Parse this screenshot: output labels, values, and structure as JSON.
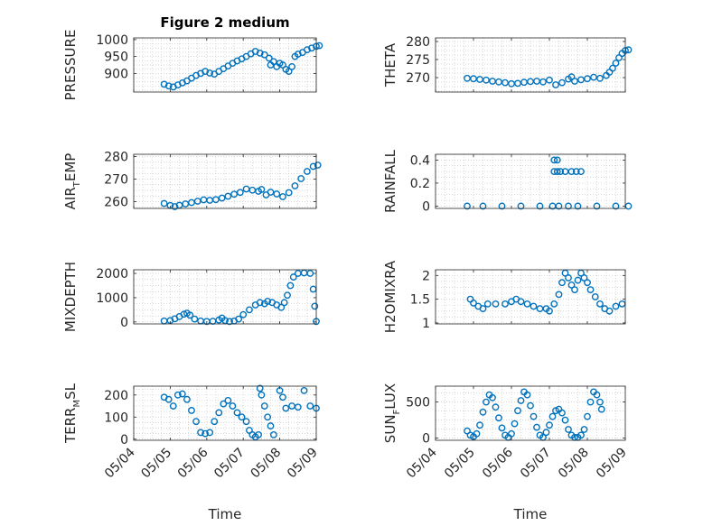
{
  "figure_title": "Figure 2 medium",
  "colors": {
    "marker": "#0072BD",
    "axes": "#262626",
    "grid": "#c8c8c8"
  },
  "chart_data": [
    {
      "id": "pressure",
      "type": "scatter",
      "title": "Figure 2 medium",
      "ylabel": {
        "main": "PRESSURE",
        "sub": ""
      },
      "xlabel": "",
      "xlim": [
        "05/04",
        "05/09"
      ],
      "xtick_labels_shown": false,
      "ylim": [
        845,
        1005
      ],
      "yticks": [
        900,
        950,
        1000
      ],
      "grid": true,
      "points": [
        [
          "05/04 20:00",
          868
        ],
        [
          "05/04 23:00",
          863
        ],
        [
          "05/05 02:00",
          860
        ],
        [
          "05/05 05:00",
          866
        ],
        [
          "05/05 08:00",
          872
        ],
        [
          "05/05 11:00",
          878
        ],
        [
          "05/05 14:00",
          886
        ],
        [
          "05/05 17:00",
          894
        ],
        [
          "05/05 20:00",
          900
        ],
        [
          "05/05 23:00",
          906
        ],
        [
          "05/06 02:00",
          901
        ],
        [
          "05/06 05:00",
          898
        ],
        [
          "05/06 08:00",
          906
        ],
        [
          "05/06 11:00",
          914
        ],
        [
          "05/06 14:00",
          922
        ],
        [
          "05/06 17:00",
          930
        ],
        [
          "05/06 20:00",
          937
        ],
        [
          "05/06 23:00",
          943
        ],
        [
          "05/07 02:00",
          950
        ],
        [
          "05/07 05:00",
          958
        ],
        [
          "05/07 08:00",
          965
        ],
        [
          "05/07 11:00",
          960
        ],
        [
          "05/07 14:00",
          955
        ],
        [
          "05/07 17:00",
          945
        ],
        [
          "05/07 18:00",
          925
        ],
        [
          "05/07 20:00",
          935
        ],
        [
          "05/07 22:00",
          920
        ],
        [
          "05/08 00:00",
          930
        ],
        [
          "05/08 02:00",
          925
        ],
        [
          "05/08 04:00",
          912
        ],
        [
          "05/08 06:00",
          906
        ],
        [
          "05/08 08:00",
          920
        ],
        [
          "05/08 10:00",
          950
        ],
        [
          "05/08 12:00",
          957
        ],
        [
          "05/08 15:00",
          962
        ],
        [
          "05/08 18:00",
          970
        ],
        [
          "05/08 21:00",
          975
        ],
        [
          "05/09 00:00",
          980
        ],
        [
          "05/09 02:00",
          982
        ]
      ]
    },
    {
      "id": "theta",
      "type": "scatter",
      "ylabel": {
        "main": "THETA",
        "sub": ""
      },
      "xlabel": "",
      "xlim": [
        "05/04",
        "05/09"
      ],
      "xtick_labels_shown": false,
      "ylim": [
        266,
        281
      ],
      "yticks": [
        270,
        275,
        280
      ],
      "grid": true,
      "points": [
        [
          "05/04 20:00",
          269.8
        ],
        [
          "05/05 00:00",
          269.7
        ],
        [
          "05/05 04:00",
          269.5
        ],
        [
          "05/05 08:00",
          269.3
        ],
        [
          "05/05 12:00",
          269.0
        ],
        [
          "05/05 16:00",
          268.8
        ],
        [
          "05/05 20:00",
          268.6
        ],
        [
          "05/06 00:00",
          268.3
        ],
        [
          "05/06 04:00",
          268.4
        ],
        [
          "05/06 08:00",
          268.7
        ],
        [
          "05/06 12:00",
          268.9
        ],
        [
          "05/06 16:00",
          269.0
        ],
        [
          "05/06 20:00",
          268.8
        ],
        [
          "05/07 00:00",
          269.3
        ],
        [
          "05/07 04:00",
          268.0
        ],
        [
          "05/07 08:00",
          268.6
        ],
        [
          "05/07 12:00",
          269.6
        ],
        [
          "05/07 14:00",
          270.2
        ],
        [
          "05/07 16:00",
          269.0
        ],
        [
          "05/07 20:00",
          269.4
        ],
        [
          "05/08 00:00",
          269.7
        ],
        [
          "05/08 04:00",
          270.1
        ],
        [
          "05/08 08:00",
          269.8
        ],
        [
          "05/08 12:00",
          270.6
        ],
        [
          "05/08 14:00",
          271.5
        ],
        [
          "05/08 16:00",
          272.6
        ],
        [
          "05/08 18:00",
          274.0
        ],
        [
          "05/08 20:00",
          275.5
        ],
        [
          "05/08 22:00",
          276.7
        ],
        [
          "05/09 00:00",
          277.5
        ],
        [
          "05/09 02:00",
          277.7
        ]
      ]
    },
    {
      "id": "air_temp",
      "type": "scatter",
      "ylabel": {
        "main": "AIR",
        "sub": "T",
        "rest": "EMP"
      },
      "xlabel": "",
      "xlim": [
        "05/04",
        "05/09"
      ],
      "xtick_labels_shown": false,
      "ylim": [
        257,
        281
      ],
      "yticks": [
        260,
        270,
        280
      ],
      "grid": true,
      "points": [
        [
          "05/04 20:00",
          259.2
        ],
        [
          "05/05 00:00",
          258.3
        ],
        [
          "05/05 03:00",
          257.8
        ],
        [
          "05/05 06:00",
          258.4
        ],
        [
          "05/05 10:00",
          259.0
        ],
        [
          "05/05 14:00",
          259.6
        ],
        [
          "05/05 18:00",
          260.2
        ],
        [
          "05/05 22:00",
          260.8
        ],
        [
          "05/06 02:00",
          260.6
        ],
        [
          "05/06 06:00",
          260.9
        ],
        [
          "05/06 10:00",
          261.6
        ],
        [
          "05/06 14:00",
          262.4
        ],
        [
          "05/06 18:00",
          263.3
        ],
        [
          "05/06 22:00",
          264.1
        ],
        [
          "05/07 02:00",
          265.6
        ],
        [
          "05/07 06:00",
          265.1
        ],
        [
          "05/07 10:00",
          264.6
        ],
        [
          "05/07 12:00",
          265.4
        ],
        [
          "05/07 15:00",
          263.0
        ],
        [
          "05/07 18:00",
          264.2
        ],
        [
          "05/07 22:00",
          263.4
        ],
        [
          "05/08 02:00",
          262.2
        ],
        [
          "05/08 06:00",
          264.0
        ],
        [
          "05/08 10:00",
          267.0
        ],
        [
          "05/08 14:00",
          270.2
        ],
        [
          "05/08 18:00",
          273.4
        ],
        [
          "05/08 22:00",
          275.6
        ],
        [
          "05/09 01:00",
          276.2
        ]
      ]
    },
    {
      "id": "rainfall",
      "type": "scatter",
      "ylabel": {
        "main": "RAINFALL",
        "sub": ""
      },
      "xlabel": "",
      "xlim": [
        "05/04",
        "05/09"
      ],
      "xtick_labels_shown": false,
      "ylim": [
        -0.02,
        0.45
      ],
      "yticks": [
        0,
        0.2,
        0.4
      ],
      "grid": true,
      "points": [
        [
          "05/04 20:00",
          0
        ],
        [
          "05/05 06:00",
          0
        ],
        [
          "05/05 18:00",
          0
        ],
        [
          "05/06 06:00",
          0
        ],
        [
          "05/06 18:00",
          0
        ],
        [
          "05/07 02:00",
          0
        ],
        [
          "05/07 03:00",
          0.4
        ],
        [
          "05/07 05:00",
          0.4
        ],
        [
          "05/07 03:00",
          0.3
        ],
        [
          "05/07 05:00",
          0.3
        ],
        [
          "05/07 07:00",
          0.3
        ],
        [
          "05/07 10:00",
          0.3
        ],
        [
          "05/07 14:00",
          0.3
        ],
        [
          "05/07 17:00",
          0.3
        ],
        [
          "05/07 20:00",
          0.3
        ],
        [
          "05/07 06:00",
          0
        ],
        [
          "05/07 12:00",
          0
        ],
        [
          "05/07 18:00",
          0
        ],
        [
          "05/08 06:00",
          0
        ],
        [
          "05/08 18:00",
          0
        ],
        [
          "05/09 02:00",
          0
        ]
      ]
    },
    {
      "id": "mixdepth",
      "type": "scatter",
      "ylabel": {
        "main": "MIXDEPTH",
        "sub": ""
      },
      "xlabel": "",
      "xlim": [
        "05/04",
        "05/09"
      ],
      "xtick_labels_shown": false,
      "ylim": [
        -80,
        2150
      ],
      "yticks": [
        0,
        1000,
        2000
      ],
      "grid": true,
      "points": [
        [
          "05/04 20:00",
          40
        ],
        [
          "05/05 00:00",
          60
        ],
        [
          "05/05 03:00",
          130
        ],
        [
          "05/05 06:00",
          220
        ],
        [
          "05/05 09:00",
          320
        ],
        [
          "05/05 11:00",
          360
        ],
        [
          "05/05 13:00",
          280
        ],
        [
          "05/05 16:00",
          120
        ],
        [
          "05/05 20:00",
          40
        ],
        [
          "05/06 00:00",
          20
        ],
        [
          "05/06 04:00",
          30
        ],
        [
          "05/06 08:00",
          80
        ],
        [
          "05/06 10:00",
          160
        ],
        [
          "05/06 12:00",
          60
        ],
        [
          "05/06 15:00",
          20
        ],
        [
          "05/06 18:00",
          40
        ],
        [
          "05/06 21:00",
          120
        ],
        [
          "05/07 00:00",
          300
        ],
        [
          "05/07 04:00",
          500
        ],
        [
          "05/07 08:00",
          700
        ],
        [
          "05/07 11:00",
          800
        ],
        [
          "05/07 14:00",
          750
        ],
        [
          "05/07 16:00",
          850
        ],
        [
          "05/07 19:00",
          800
        ],
        [
          "05/07 22:00",
          700
        ],
        [
          "05/08 01:00",
          600
        ],
        [
          "05/08 03:00",
          800
        ],
        [
          "05/08 05:00",
          1100
        ],
        [
          "05/08 07:00",
          1500
        ],
        [
          "05/08 09:00",
          1850
        ],
        [
          "05/08 12:00",
          2000
        ],
        [
          "05/08 16:00",
          2020
        ],
        [
          "05/08 20:00",
          2000
        ],
        [
          "05/08 22:00",
          1350
        ],
        [
          "05/08 23:00",
          650
        ],
        [
          "05/09 00:00",
          20
        ]
      ]
    },
    {
      "id": "h2omixra",
      "type": "scatter",
      "ylabel": {
        "main": "H2OMIXRA",
        "sub": ""
      },
      "xlabel": "",
      "xlim": [
        "05/04",
        "05/09"
      ],
      "xtick_labels_shown": false,
      "ylim": [
        0.98,
        2.12
      ],
      "yticks": [
        1,
        1.5,
        2
      ],
      "grid": true,
      "points": [
        [
          "05/04 22:00",
          1.5
        ],
        [
          "05/05 00:00",
          1.42
        ],
        [
          "05/05 03:00",
          1.35
        ],
        [
          "05/05 06:00",
          1.3
        ],
        [
          "05/05 09:00",
          1.4
        ],
        [
          "05/05 14:00",
          1.4
        ],
        [
          "05/05 20:00",
          1.4
        ],
        [
          "05/06 00:00",
          1.45
        ],
        [
          "05/06 03:00",
          1.5
        ],
        [
          "05/06 06:00",
          1.45
        ],
        [
          "05/06 10:00",
          1.4
        ],
        [
          "05/06 14:00",
          1.35
        ],
        [
          "05/06 18:00",
          1.3
        ],
        [
          "05/06 22:00",
          1.3
        ],
        [
          "05/07 00:00",
          1.25
        ],
        [
          "05/07 03:00",
          1.4
        ],
        [
          "05/07 06:00",
          1.6
        ],
        [
          "05/07 08:00",
          1.85
        ],
        [
          "05/07 10:00",
          2.05
        ],
        [
          "05/07 12:00",
          1.95
        ],
        [
          "05/07 14:00",
          1.8
        ],
        [
          "05/07 16:00",
          1.7
        ],
        [
          "05/07 18:00",
          1.9
        ],
        [
          "05/07 20:00",
          2.05
        ],
        [
          "05/07 22:00",
          1.95
        ],
        [
          "05/08 00:00",
          1.85
        ],
        [
          "05/08 02:00",
          1.7
        ],
        [
          "05/08 05:00",
          1.55
        ],
        [
          "05/08 08:00",
          1.4
        ],
        [
          "05/08 11:00",
          1.3
        ],
        [
          "05/08 14:00",
          1.25
        ],
        [
          "05/08 18:00",
          1.35
        ],
        [
          "05/08 22:00",
          1.4
        ]
      ]
    },
    {
      "id": "terr_msl",
      "type": "scatter",
      "ylabel": {
        "main": "TERR",
        "sub": "M",
        "rest": "SL"
      },
      "xlabel": "Time",
      "xlim": [
        "05/04",
        "05/09"
      ],
      "xtick_labels": [
        "05/04",
        "05/05",
        "05/06",
        "05/07",
        "05/08",
        "05/09"
      ],
      "ylim": [
        -5,
        240
      ],
      "yticks": [
        0,
        100,
        200
      ],
      "grid": true,
      "points": [
        [
          "05/04 20:00",
          190
        ],
        [
          "05/04 23:00",
          180
        ],
        [
          "05/05 02:00",
          150
        ],
        [
          "05/05 05:00",
          200
        ],
        [
          "05/05 08:00",
          205
        ],
        [
          "05/05 11:00",
          180
        ],
        [
          "05/05 14:00",
          130
        ],
        [
          "05/05 17:00",
          80
        ],
        [
          "05/05 20:00",
          30
        ],
        [
          "05/05 23:00",
          25
        ],
        [
          "05/06 02:00",
          30
        ],
        [
          "05/06 05:00",
          80
        ],
        [
          "05/06 08:00",
          120
        ],
        [
          "05/06 11:00",
          160
        ],
        [
          "05/06 14:00",
          175
        ],
        [
          "05/06 17:00",
          150
        ],
        [
          "05/06 20:00",
          120
        ],
        [
          "05/06 23:00",
          100
        ],
        [
          "05/07 02:00",
          80
        ],
        [
          "05/07 04:00",
          40
        ],
        [
          "05/07 06:00",
          20
        ],
        [
          "05/07 08:00",
          10
        ],
        [
          "05/07 10:00",
          20
        ],
        [
          "05/07 11:00",
          230
        ],
        [
          "05/07 12:00",
          200
        ],
        [
          "05/07 14:00",
          150
        ],
        [
          "05/07 16:00",
          100
        ],
        [
          "05/07 18:00",
          60
        ],
        [
          "05/07 20:00",
          20
        ],
        [
          "05/08 00:00",
          220
        ],
        [
          "05/08 02:00",
          190
        ],
        [
          "05/08 04:00",
          140
        ],
        [
          "05/08 08:00",
          150
        ],
        [
          "05/08 12:00",
          145
        ],
        [
          "05/08 16:00",
          220
        ],
        [
          "05/08 20:00",
          150
        ],
        [
          "05/09 00:00",
          140
        ]
      ]
    },
    {
      "id": "sun_flux",
      "type": "scatter",
      "ylabel": {
        "main": "SUN",
        "sub": "F",
        "rest": "LUX"
      },
      "xlabel": "Time",
      "xlim": [
        "05/04",
        "05/09"
      ],
      "xtick_labels": [
        "05/04",
        "05/05",
        "05/06",
        "05/07",
        "05/08",
        "05/09"
      ],
      "ylim": [
        -30,
        720
      ],
      "yticks": [
        0,
        500
      ],
      "grid": true,
      "points": [
        [
          "05/04 20:00",
          100
        ],
        [
          "05/04 22:00",
          40
        ],
        [
          "05/05 00:00",
          20
        ],
        [
          "05/05 02:00",
          60
        ],
        [
          "05/05 04:00",
          180
        ],
        [
          "05/05 06:00",
          360
        ],
        [
          "05/05 08:00",
          500
        ],
        [
          "05/05 10:00",
          600
        ],
        [
          "05/05 12:00",
          560
        ],
        [
          "05/05 14:00",
          430
        ],
        [
          "05/05 16:00",
          280
        ],
        [
          "05/05 18:00",
          140
        ],
        [
          "05/05 20:00",
          40
        ],
        [
          "05/05 22:00",
          10
        ],
        [
          "05/06 00:00",
          60
        ],
        [
          "05/06 02:00",
          200
        ],
        [
          "05/06 04:00",
          380
        ],
        [
          "05/06 06:00",
          520
        ],
        [
          "05/06 08:00",
          640
        ],
        [
          "05/06 10:00",
          600
        ],
        [
          "05/06 12:00",
          450
        ],
        [
          "05/06 14:00",
          300
        ],
        [
          "05/06 16:00",
          150
        ],
        [
          "05/06 18:00",
          40
        ],
        [
          "05/06 20:00",
          10
        ],
        [
          "05/06 22:00",
          80
        ],
        [
          "05/07 00:00",
          180
        ],
        [
          "05/07 02:00",
          300
        ],
        [
          "05/07 04:00",
          380
        ],
        [
          "05/07 06:00",
          400
        ],
        [
          "05/07 08:00",
          350
        ],
        [
          "05/07 10:00",
          250
        ],
        [
          "05/07 12:00",
          120
        ],
        [
          "05/07 14:00",
          40
        ],
        [
          "05/07 16:00",
          10
        ],
        [
          "05/07 18:00",
          10
        ],
        [
          "05/07 20:00",
          40
        ],
        [
          "05/07 22:00",
          120
        ],
        [
          "05/08 00:00",
          300
        ],
        [
          "05/08 02:00",
          500
        ],
        [
          "05/08 04:00",
          640
        ],
        [
          "05/08 06:00",
          600
        ],
        [
          "05/08 08:00",
          500
        ],
        [
          "05/08 09:00",
          400
        ]
      ]
    }
  ]
}
